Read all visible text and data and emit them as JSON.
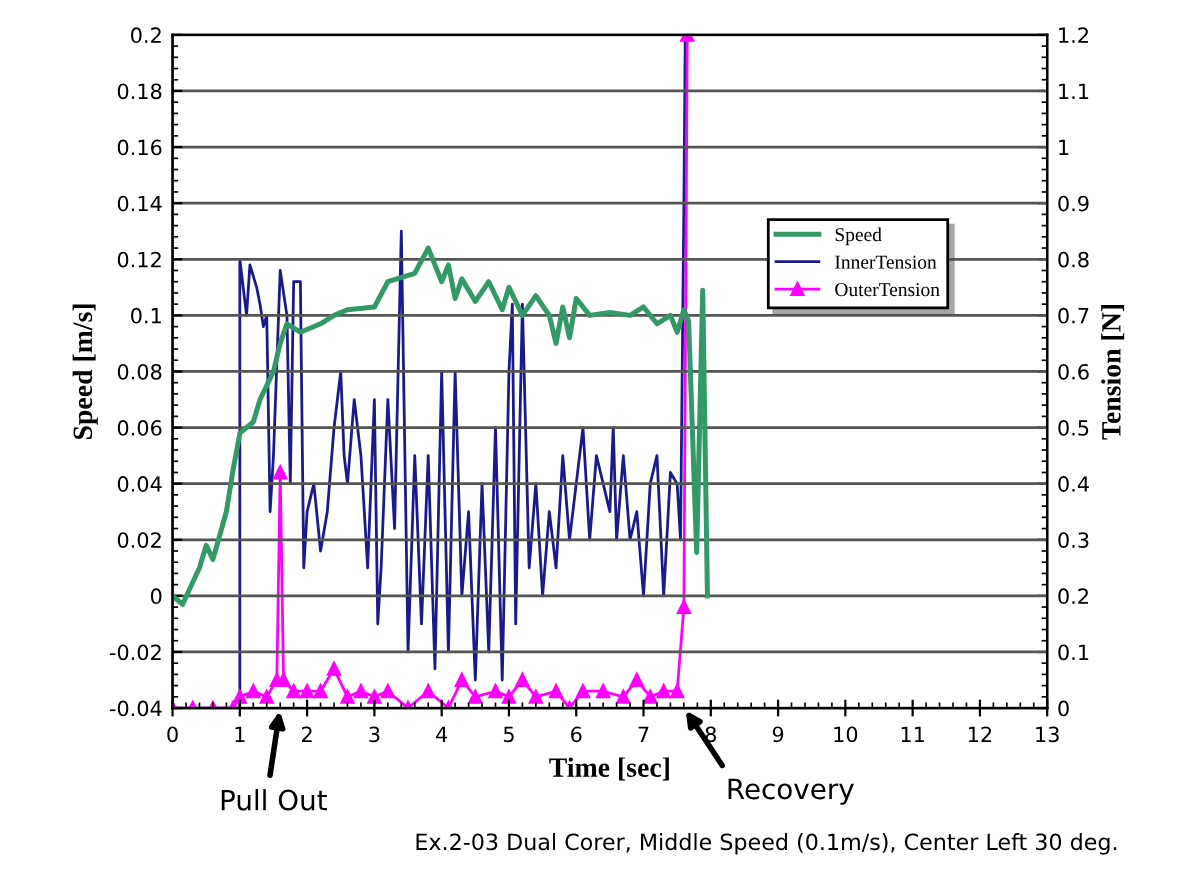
{
  "chart_data": {
    "type": "line",
    "xlabel": "Time [sec]",
    "ylabel": "Speed [m/s]",
    "y2label": "Tension [N]",
    "xlim": [
      0,
      13
    ],
    "xticks": [
      0,
      1,
      2,
      3,
      4,
      5,
      6,
      7,
      8,
      9,
      10,
      11,
      12,
      13
    ],
    "ylim": [
      -0.04,
      0.2
    ],
    "yticks": [
      -0.04,
      -0.02,
      0,
      0.02,
      0.04,
      0.06,
      0.08,
      0.1,
      0.12,
      0.14,
      0.16,
      0.18,
      0.2
    ],
    "y2lim": [
      0,
      1.2
    ],
    "y2ticks": [
      0,
      0.1,
      0.2,
      0.3,
      0.4,
      0.5,
      0.6,
      0.7,
      0.8,
      0.9,
      1,
      1.1,
      1.2
    ],
    "grid": "y",
    "legend": "right",
    "series": [
      {
        "name": "Speed",
        "color": "#339966",
        "marker": "none",
        "x": [
          0,
          0.15,
          0.4,
          0.5,
          0.6,
          0.8,
          0.9,
          1.0,
          1.2,
          1.3,
          1.5,
          1.6,
          1.7,
          1.9,
          2.2,
          2.4,
          2.6,
          3.0,
          3.2,
          3.6,
          3.8,
          3.9,
          4.0,
          4.1,
          4.2,
          4.3,
          4.5,
          4.7,
          4.9,
          5.0,
          5.2,
          5.4,
          5.6,
          5.7,
          5.8,
          5.9,
          6.0,
          6.2,
          6.5,
          6.8,
          7.0,
          7.2,
          7.4,
          7.5,
          7.6,
          7.67,
          7.79,
          7.88,
          7.95
        ],
        "values": [
          0.0,
          -0.003,
          0.01,
          0.018,
          0.013,
          0.03,
          0.045,
          0.058,
          0.062,
          0.07,
          0.08,
          0.09,
          0.097,
          0.094,
          0.097,
          0.1,
          0.102,
          0.103,
          0.112,
          0.115,
          0.124,
          0.118,
          0.112,
          0.118,
          0.106,
          0.113,
          0.105,
          0.112,
          0.102,
          0.11,
          0.1,
          0.107,
          0.1,
          0.09,
          0.103,
          0.092,
          0.106,
          0.1,
          0.101,
          0.1,
          0.103,
          0.097,
          0.1,
          0.094,
          0.102,
          0.098,
          0.0155,
          0.109,
          0.0
        ]
      },
      {
        "name": "InnerTension",
        "color": "#1a1a8c",
        "axis": "y2",
        "marker": "none",
        "x": [
          0,
          1.0,
          1.0,
          1.1,
          1.15,
          1.25,
          1.3,
          1.35,
          1.4,
          1.45,
          1.5,
          1.6,
          1.7,
          1.75,
          1.8,
          1.9,
          1.95,
          2.0,
          2.1,
          2.2,
          2.3,
          2.4,
          2.5,
          2.55,
          2.6,
          2.7,
          2.8,
          2.9,
          3.0,
          3.05,
          3.1,
          3.2,
          3.3,
          3.4,
          3.5,
          3.6,
          3.7,
          3.8,
          3.9,
          4.0,
          4.1,
          4.2,
          4.3,
          4.4,
          4.5,
          4.6,
          4.7,
          4.8,
          4.9,
          5.0,
          5.05,
          5.1,
          5.2,
          5.3,
          5.4,
          5.5,
          5.6,
          5.7,
          5.8,
          5.9,
          6.0,
          6.1,
          6.2,
          6.3,
          6.4,
          6.5,
          6.55,
          6.6,
          6.7,
          6.8,
          6.9,
          7.0,
          7.1,
          7.2,
          7.3,
          7.4,
          7.5,
          7.55,
          7.6,
          7.62
        ],
        "values": [
          0,
          0,
          0.8,
          0.7,
          0.79,
          0.75,
          0.72,
          0.68,
          0.7,
          0.35,
          0.45,
          0.78,
          0.7,
          0.4,
          0.76,
          0.76,
          0.25,
          0.35,
          0.4,
          0.28,
          0.35,
          0.5,
          0.6,
          0.45,
          0.4,
          0.55,
          0.45,
          0.25,
          0.55,
          0.15,
          0.25,
          0.55,
          0.32,
          0.85,
          0.1,
          0.45,
          0.15,
          0.45,
          0.07,
          0.6,
          0.1,
          0.6,
          0.2,
          0.35,
          0.05,
          0.4,
          0.1,
          0.5,
          0.05,
          0.6,
          0.72,
          0.15,
          0.72,
          0.25,
          0.4,
          0.2,
          0.35,
          0.25,
          0.45,
          0.3,
          0.4,
          0.5,
          0.3,
          0.45,
          0.4,
          0.35,
          0.5,
          0.3,
          0.45,
          0.3,
          0.35,
          0.2,
          0.4,
          0.45,
          0.2,
          0.42,
          0.4,
          0.3,
          0.9,
          1.2
        ]
      },
      {
        "name": "OuterTension",
        "color": "#ff00ff",
        "axis": "y2",
        "marker": "triangle",
        "x": [
          0,
          0.3,
          0.6,
          0.9,
          1.0,
          1.2,
          1.4,
          1.55,
          1.6,
          1.65,
          1.8,
          2.0,
          2.2,
          2.4,
          2.6,
          2.8,
          3.0,
          3.2,
          3.5,
          3.8,
          4.1,
          4.3,
          4.5,
          4.8,
          5.0,
          5.2,
          5.4,
          5.7,
          5.9,
          6.1,
          6.4,
          6.7,
          6.9,
          7.1,
          7.3,
          7.5,
          7.6,
          7.65
        ],
        "values": [
          0,
          0,
          0,
          0,
          0.02,
          0.03,
          0.02,
          0.05,
          0.42,
          0.05,
          0.03,
          0.03,
          0.03,
          0.07,
          0.02,
          0.03,
          0.02,
          0.03,
          0.0,
          0.03,
          0.0,
          0.05,
          0.02,
          0.03,
          0.02,
          0.05,
          0.02,
          0.03,
          0.0,
          0.03,
          0.03,
          0.02,
          0.05,
          0.02,
          0.03,
          0.03,
          0.18,
          1.2
        ]
      }
    ],
    "annotations": [
      {
        "text": "Pull Out",
        "x": 1.6,
        "y": -0.04
      },
      "Recovery",
      "Ex.2-03 Dual Corer, Middle Speed (0.1m/s), Center Left 30 deg."
    ]
  }
}
